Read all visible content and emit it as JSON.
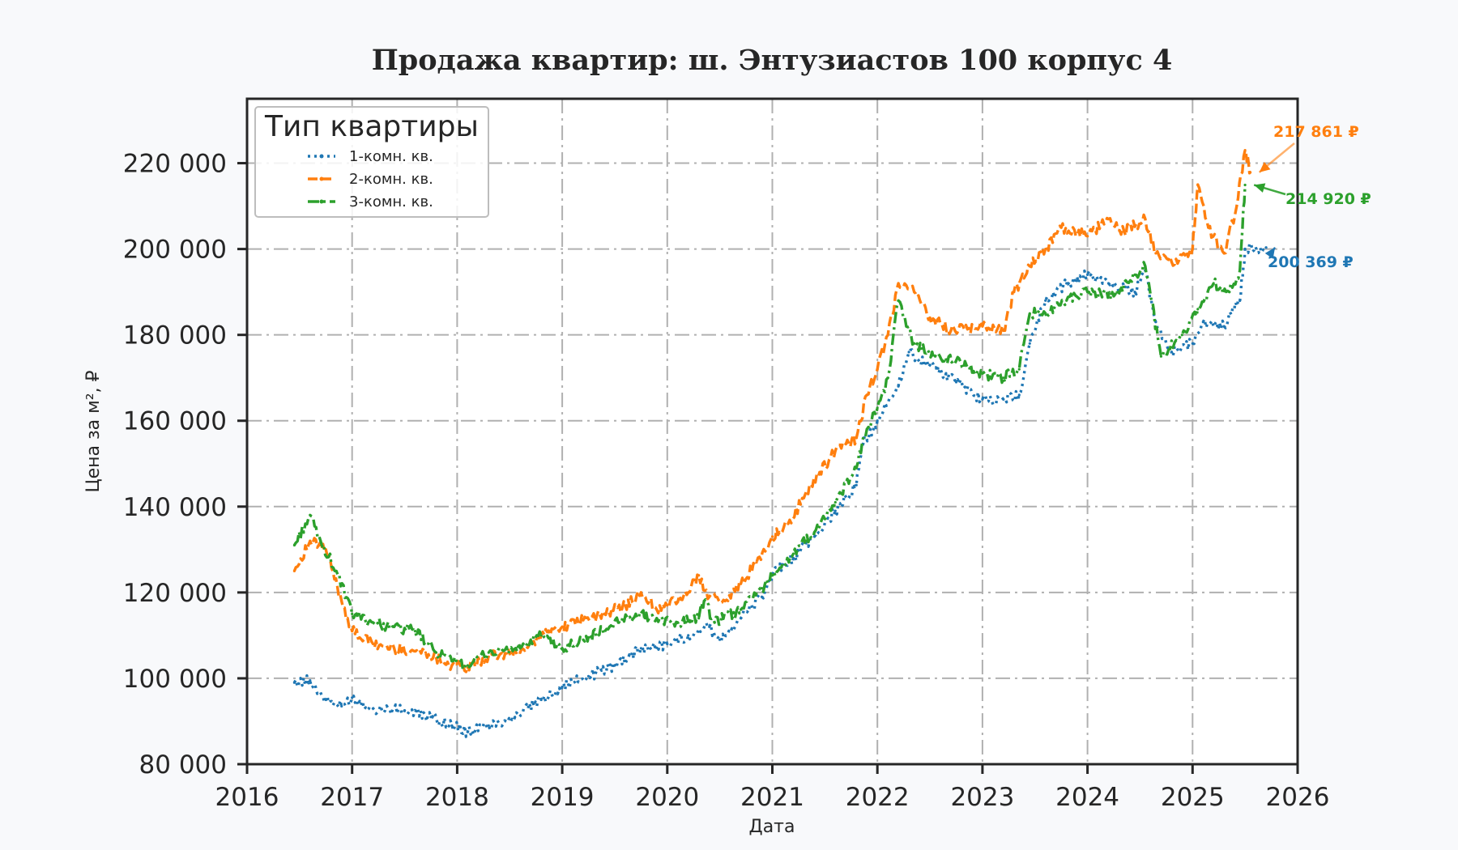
{
  "colors": {
    "series_1": "#1f77b4",
    "series_2": "#ff7f0e",
    "series_3": "#2ca02c",
    "background": "#f8f9fb",
    "plot_bg": "#ffffff",
    "text": "#262626",
    "grid": "#b0b0b0"
  },
  "chart_data": {
    "type": "line",
    "title": "Продажа квартир: ш. Энтузиастов 100 корпус 4",
    "xlabel": "Дата",
    "ylabel": "Цена за м², ₽",
    "xlim": [
      2016,
      2026
    ],
    "ylim": [
      80000,
      235000
    ],
    "x_ticks": [
      2016,
      2017,
      2018,
      2019,
      2020,
      2021,
      2022,
      2023,
      2024,
      2025,
      2026
    ],
    "x_tick_labels": [
      "2016",
      "2017",
      "2018",
      "2019",
      "2020",
      "2021",
      "2022",
      "2023",
      "2024",
      "2025",
      "2026"
    ],
    "y_ticks": [
      80000,
      100000,
      120000,
      140000,
      160000,
      180000,
      200000,
      220000
    ],
    "y_tick_labels": [
      "80 000",
      "100 000",
      "120 000",
      "140 000",
      "160 000",
      "180 000",
      "200 000",
      "220 000"
    ],
    "grid": true,
    "legend": {
      "title": "Тип квартиры",
      "placement": "top-left"
    },
    "series": [
      {
        "name": "1-комн. кв.",
        "color": "#1f77b4",
        "linestyle": "dotted",
        "points": [
          [
            2016.45,
            99000
          ],
          [
            2016.6,
            99500
          ],
          [
            2016.75,
            95000
          ],
          [
            2016.9,
            93500
          ],
          [
            2017.0,
            95500
          ],
          [
            2017.2,
            93000
          ],
          [
            2017.5,
            92500
          ],
          [
            2017.75,
            91000
          ],
          [
            2017.95,
            89000
          ],
          [
            2018.1,
            87500
          ],
          [
            2018.3,
            89000
          ],
          [
            2018.55,
            91000
          ],
          [
            2018.8,
            95000
          ],
          [
            2019.0,
            98000
          ],
          [
            2019.25,
            100500
          ],
          [
            2019.5,
            103000
          ],
          [
            2019.75,
            107000
          ],
          [
            2020.0,
            108000
          ],
          [
            2020.2,
            110000
          ],
          [
            2020.4,
            112000
          ],
          [
            2020.5,
            109000
          ],
          [
            2020.7,
            114000
          ],
          [
            2020.9,
            119000
          ],
          [
            2021.0,
            124000
          ],
          [
            2021.2,
            128000
          ],
          [
            2021.4,
            133000
          ],
          [
            2021.6,
            139000
          ],
          [
            2021.8,
            145000
          ],
          [
            2021.85,
            154000
          ],
          [
            2022.0,
            160000
          ],
          [
            2022.2,
            168000
          ],
          [
            2022.3,
            176000
          ],
          [
            2022.5,
            173000
          ],
          [
            2022.75,
            169000
          ],
          [
            2023.0,
            165000
          ],
          [
            2023.2,
            165000
          ],
          [
            2023.35,
            166000
          ],
          [
            2023.45,
            178000
          ],
          [
            2023.6,
            188000
          ],
          [
            2023.8,
            192000
          ],
          [
            2024.0,
            194000
          ],
          [
            2024.2,
            192000
          ],
          [
            2024.45,
            190000
          ],
          [
            2024.55,
            195000
          ],
          [
            2024.65,
            183000
          ],
          [
            2024.8,
            176000
          ],
          [
            2025.0,
            178000
          ],
          [
            2025.1,
            183000
          ],
          [
            2025.3,
            182000
          ],
          [
            2025.45,
            188000
          ],
          [
            2025.5,
            200000
          ],
          [
            2025.7,
            200369
          ]
        ],
        "last_value_label": "200 369 ₽"
      },
      {
        "name": "2-комн. кв.",
        "color": "#ff7f0e",
        "linestyle": "dashed",
        "points": [
          [
            2016.45,
            125000
          ],
          [
            2016.6,
            132000
          ],
          [
            2016.75,
            130000
          ],
          [
            2016.9,
            118000
          ],
          [
            2017.0,
            111000
          ],
          [
            2017.2,
            108000
          ],
          [
            2017.4,
            107000
          ],
          [
            2017.7,
            106000
          ],
          [
            2017.95,
            103000
          ],
          [
            2018.1,
            102500
          ],
          [
            2018.3,
            105000
          ],
          [
            2018.6,
            106000
          ],
          [
            2018.8,
            110000
          ],
          [
            2019.0,
            112000
          ],
          [
            2019.2,
            113500
          ],
          [
            2019.4,
            115000
          ],
          [
            2019.6,
            117000
          ],
          [
            2019.75,
            120000
          ],
          [
            2019.9,
            116000
          ],
          [
            2020.0,
            117000
          ],
          [
            2020.2,
            120000
          ],
          [
            2020.3,
            124000
          ],
          [
            2020.4,
            119000
          ],
          [
            2020.55,
            118000
          ],
          [
            2020.7,
            122000
          ],
          [
            2020.85,
            127000
          ],
          [
            2021.0,
            133000
          ],
          [
            2021.15,
            136000
          ],
          [
            2021.3,
            142000
          ],
          [
            2021.45,
            148000
          ],
          [
            2021.6,
            153000
          ],
          [
            2021.8,
            156000
          ],
          [
            2021.9,
            166000
          ],
          [
            2022.0,
            172000
          ],
          [
            2022.1,
            180000
          ],
          [
            2022.2,
            192000
          ],
          [
            2022.35,
            190000
          ],
          [
            2022.5,
            184000
          ],
          [
            2022.7,
            181000
          ],
          [
            2023.0,
            182000
          ],
          [
            2023.2,
            181000
          ],
          [
            2023.3,
            190000
          ],
          [
            2023.45,
            196000
          ],
          [
            2023.6,
            200000
          ],
          [
            2023.75,
            205000
          ],
          [
            2024.0,
            203000
          ],
          [
            2024.2,
            207000
          ],
          [
            2024.35,
            204000
          ],
          [
            2024.55,
            207000
          ],
          [
            2024.65,
            199000
          ],
          [
            2024.8,
            197000
          ],
          [
            2025.0,
            200000
          ],
          [
            2025.05,
            215000
          ],
          [
            2025.15,
            205000
          ],
          [
            2025.3,
            199000
          ],
          [
            2025.42,
            210000
          ],
          [
            2025.5,
            223000
          ],
          [
            2025.55,
            217861
          ]
        ],
        "last_value_label": "217 861 ₽"
      },
      {
        "name": "3-комн. кв.",
        "color": "#2ca02c",
        "linestyle": "dashdot",
        "points": [
          [
            2016.45,
            131000
          ],
          [
            2016.6,
            138000
          ],
          [
            2016.7,
            132000
          ],
          [
            2016.85,
            125000
          ],
          [
            2017.0,
            115000
          ],
          [
            2017.2,
            113000
          ],
          [
            2017.4,
            112000
          ],
          [
            2017.6,
            111000
          ],
          [
            2017.8,
            106000
          ],
          [
            2017.95,
            104000
          ],
          [
            2018.1,
            103000
          ],
          [
            2018.3,
            106000
          ],
          [
            2018.6,
            107000
          ],
          [
            2018.8,
            110000
          ],
          [
            2019.0,
            107000
          ],
          [
            2019.2,
            109000
          ],
          [
            2019.45,
            112000
          ],
          [
            2019.7,
            115000
          ],
          [
            2019.9,
            114000
          ],
          [
            2020.1,
            113000
          ],
          [
            2020.3,
            114000
          ],
          [
            2020.35,
            118000
          ],
          [
            2020.45,
            113000
          ],
          [
            2020.7,
            116000
          ],
          [
            2020.9,
            121000
          ],
          [
            2021.0,
            124000
          ],
          [
            2021.2,
            129000
          ],
          [
            2021.4,
            134000
          ],
          [
            2021.6,
            141000
          ],
          [
            2021.8,
            149000
          ],
          [
            2021.9,
            158000
          ],
          [
            2022.0,
            163000
          ],
          [
            2022.1,
            170000
          ],
          [
            2022.2,
            188000
          ],
          [
            2022.35,
            178000
          ],
          [
            2022.55,
            175000
          ],
          [
            2022.75,
            174000
          ],
          [
            2023.0,
            171000
          ],
          [
            2023.2,
            170000
          ],
          [
            2023.35,
            172000
          ],
          [
            2023.45,
            185000
          ],
          [
            2023.6,
            185000
          ],
          [
            2023.8,
            188000
          ],
          [
            2024.0,
            190000
          ],
          [
            2024.25,
            189000
          ],
          [
            2024.45,
            194000
          ],
          [
            2024.55,
            196000
          ],
          [
            2024.7,
            175000
          ],
          [
            2024.9,
            180000
          ],
          [
            2025.05,
            186000
          ],
          [
            2025.2,
            192000
          ],
          [
            2025.35,
            190000
          ],
          [
            2025.45,
            195000
          ],
          [
            2025.5,
            214920
          ]
        ],
        "last_value_label": "214 920 ₽"
      }
    ]
  }
}
